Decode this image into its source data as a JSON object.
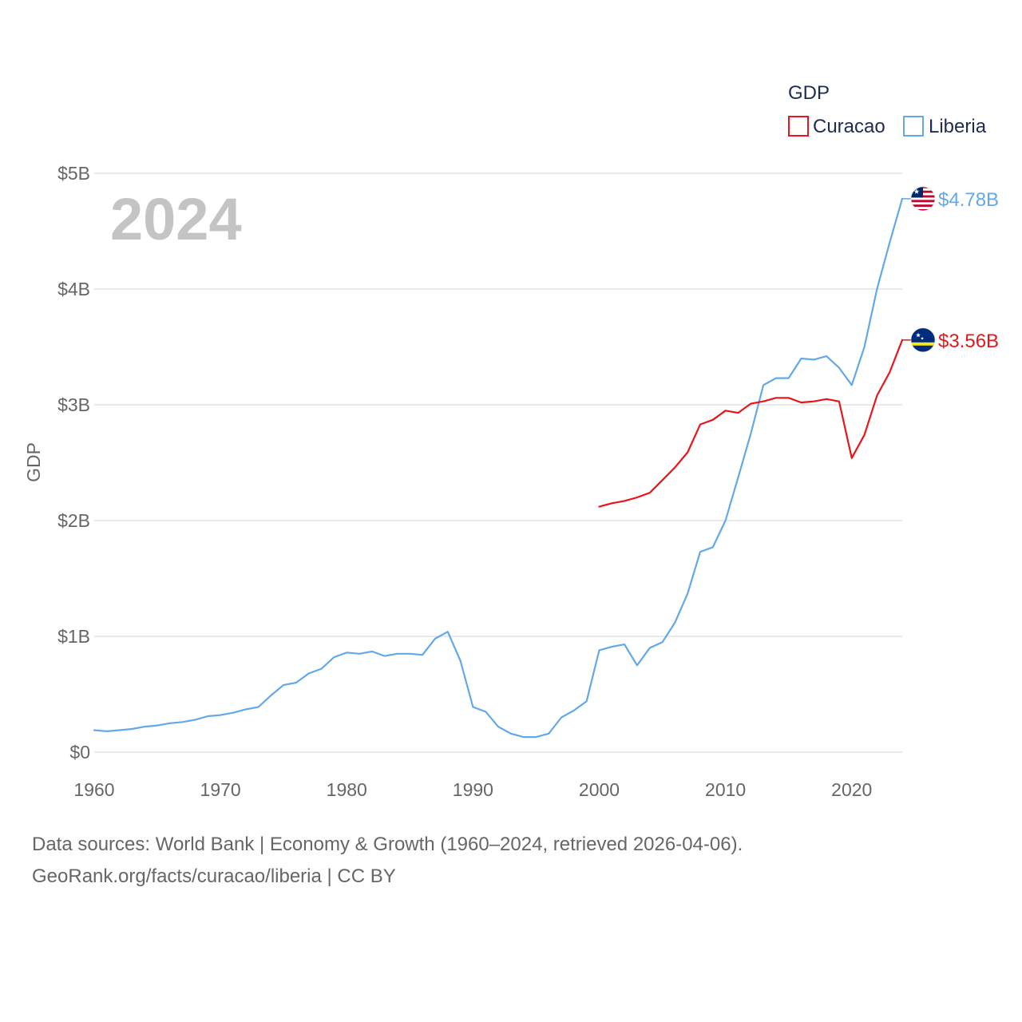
{
  "chart_data": {
    "type": "line",
    "legend_title": "GDP",
    "ylabel": "GDP",
    "year_label": "2024",
    "x_ticks": [
      1960,
      1970,
      1980,
      1990,
      2000,
      2010,
      2020
    ],
    "x_tick_labels": [
      "1960",
      "1970",
      "1980",
      "1990",
      "2000",
      "2010",
      "2020"
    ],
    "xlim": [
      1960,
      2024
    ],
    "ylim": [
      0,
      5
    ],
    "y_ticks": [
      0,
      1,
      2,
      3,
      4,
      5
    ],
    "y_tick_labels": [
      "$0",
      "$1B",
      "$2B",
      "$3B",
      "$4B",
      "$5B"
    ],
    "y_unit": "billion USD",
    "series": [
      {
        "name": "Curacao",
        "color": "#e8161b",
        "end_label": "$3.56B",
        "flag": "curacao-flag",
        "x": [
          2000,
          2001,
          2002,
          2003,
          2004,
          2005,
          2006,
          2007,
          2008,
          2009,
          2010,
          2011,
          2012,
          2013,
          2014,
          2015,
          2016,
          2017,
          2018,
          2019,
          2020,
          2021,
          2022,
          2023,
          2024
        ],
        "values": [
          2.12,
          2.15,
          2.17,
          2.2,
          2.24,
          2.35,
          2.46,
          2.59,
          2.83,
          2.87,
          2.95,
          2.93,
          3.01,
          3.03,
          3.06,
          3.06,
          3.02,
          3.03,
          3.05,
          3.03,
          2.54,
          2.74,
          3.08,
          3.28,
          3.56
        ]
      },
      {
        "name": "Liberia",
        "color": "#64a8e8",
        "end_label": "$4.78B",
        "flag": "liberia-flag",
        "x": [
          1960,
          1961,
          1962,
          1963,
          1964,
          1965,
          1966,
          1967,
          1968,
          1969,
          1970,
          1971,
          1972,
          1973,
          1974,
          1975,
          1976,
          1977,
          1978,
          1979,
          1980,
          1981,
          1982,
          1983,
          1984,
          1985,
          1986,
          1987,
          1988,
          1989,
          1990,
          1991,
          1992,
          1993,
          1994,
          1995,
          1996,
          1997,
          1998,
          1999,
          2000,
          2001,
          2002,
          2003,
          2004,
          2005,
          2006,
          2007,
          2008,
          2009,
          2010,
          2011,
          2012,
          2013,
          2014,
          2015,
          2016,
          2017,
          2018,
          2019,
          2020,
          2021,
          2022,
          2023,
          2024
        ],
        "values": [
          0.19,
          0.18,
          0.19,
          0.2,
          0.22,
          0.23,
          0.25,
          0.26,
          0.28,
          0.31,
          0.32,
          0.34,
          0.37,
          0.39,
          0.49,
          0.58,
          0.6,
          0.68,
          0.72,
          0.82,
          0.86,
          0.85,
          0.87,
          0.83,
          0.85,
          0.85,
          0.84,
          0.98,
          1.04,
          0.79,
          0.39,
          0.35,
          0.22,
          0.16,
          0.13,
          0.13,
          0.16,
          0.3,
          0.36,
          0.44,
          0.88,
          0.91,
          0.93,
          0.75,
          0.9,
          0.95,
          1.12,
          1.37,
          1.73,
          1.77,
          2.0,
          2.37,
          2.75,
          3.17,
          3.23,
          3.23,
          3.4,
          3.39,
          3.42,
          3.32,
          3.17,
          3.5,
          4.0,
          4.4,
          4.78
        ]
      }
    ]
  },
  "footer": {
    "line1": "Data sources: World Bank | Economy & Growth (1960–2024, retrieved 2026-04-06).",
    "line2": "GeoRank.org/facts/curacao/liberia | CC BY"
  }
}
